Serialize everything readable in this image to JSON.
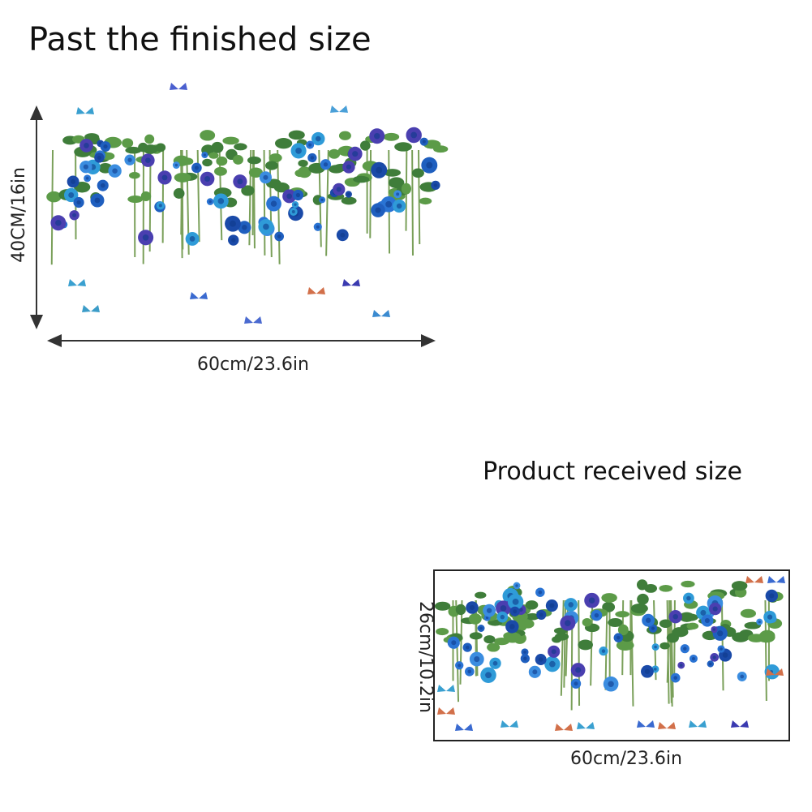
{
  "finished": {
    "title": "Past the finished size",
    "height": "40CM/16in",
    "width": "60cm/23.6in"
  },
  "received": {
    "title": "Product received size",
    "height": "26cm/10.2in",
    "width": "60cm/23.6in"
  }
}
